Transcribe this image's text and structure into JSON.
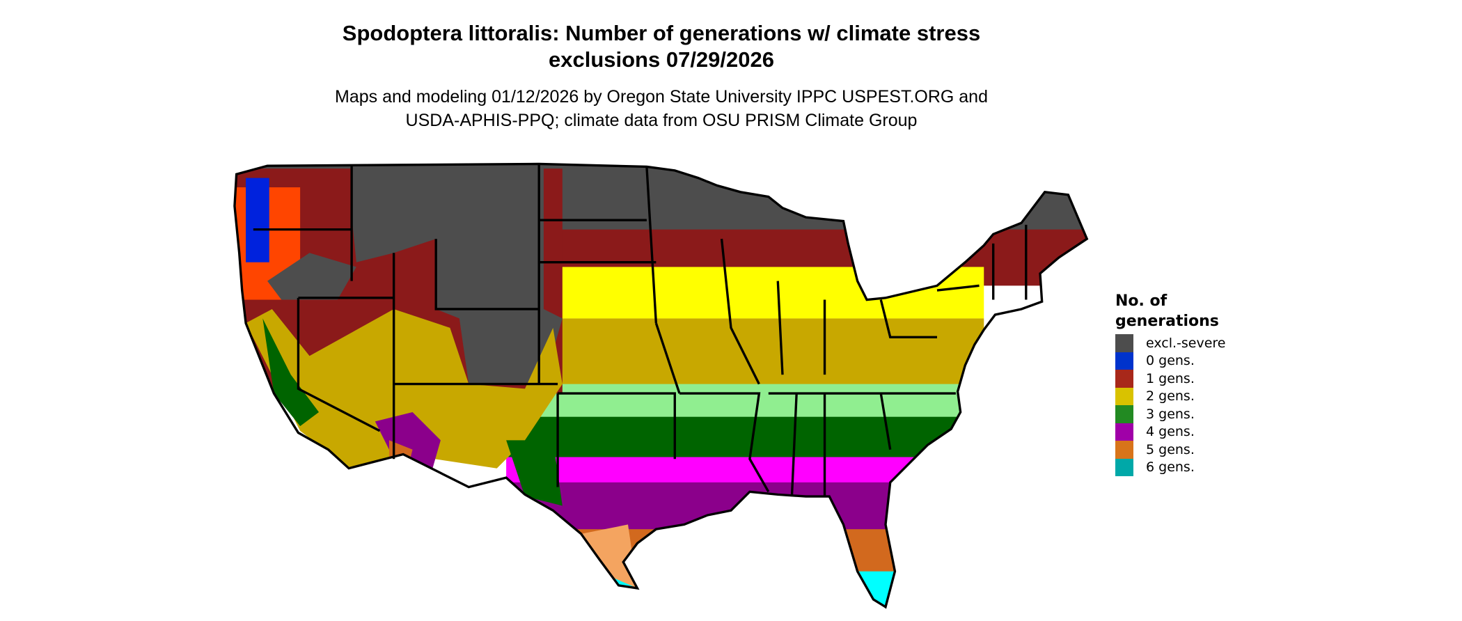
{
  "title": {
    "line1": "Spodoptera littoralis: Number of generations w/ climate stress",
    "line2": "exclusions 07/29/2026"
  },
  "subtitle": {
    "line1": "Maps and modeling 01/12/2026 by Oregon State University IPPC USPEST.ORG and",
    "line2": "USDA-APHIS-PPQ; climate data from OSU PRISM Climate Group"
  },
  "legend": {
    "title_line1": "No. of",
    "title_line2": "generations",
    "items": [
      {
        "label": "excl.-severe",
        "color": "#4d4d4d"
      },
      {
        "label": "0 gens.",
        "color": "#0033cc"
      },
      {
        "label": "1 gens.",
        "color": "#a8281a"
      },
      {
        "label": "2 gens.",
        "color": "#d9c200"
      },
      {
        "label": "3 gens.",
        "color": "#228a22"
      },
      {
        "label": "4 gens.",
        "color": "#a000a8"
      },
      {
        "label": "5 gens.",
        "color": "#d8741a"
      },
      {
        "label": "6 gens.",
        "color": "#00a8a8"
      }
    ]
  },
  "map_colors": {
    "excluded": "#4d4d4d",
    "gen0": "#0022dd",
    "gen1_dark": "#8b1a1a",
    "gen1_light": "#ff4500",
    "gen2_light": "#ffff00",
    "gen2_dark": "#c8a800",
    "gen3_light": "#90ee90",
    "gen3_dark": "#006400",
    "gen4_light": "#ff00ff",
    "gen4_dark": "#8b008b",
    "gen5_dark": "#d2691e",
    "gen5_light": "#f4a460",
    "gen6": "#00ffff",
    "border": "#000000"
  }
}
